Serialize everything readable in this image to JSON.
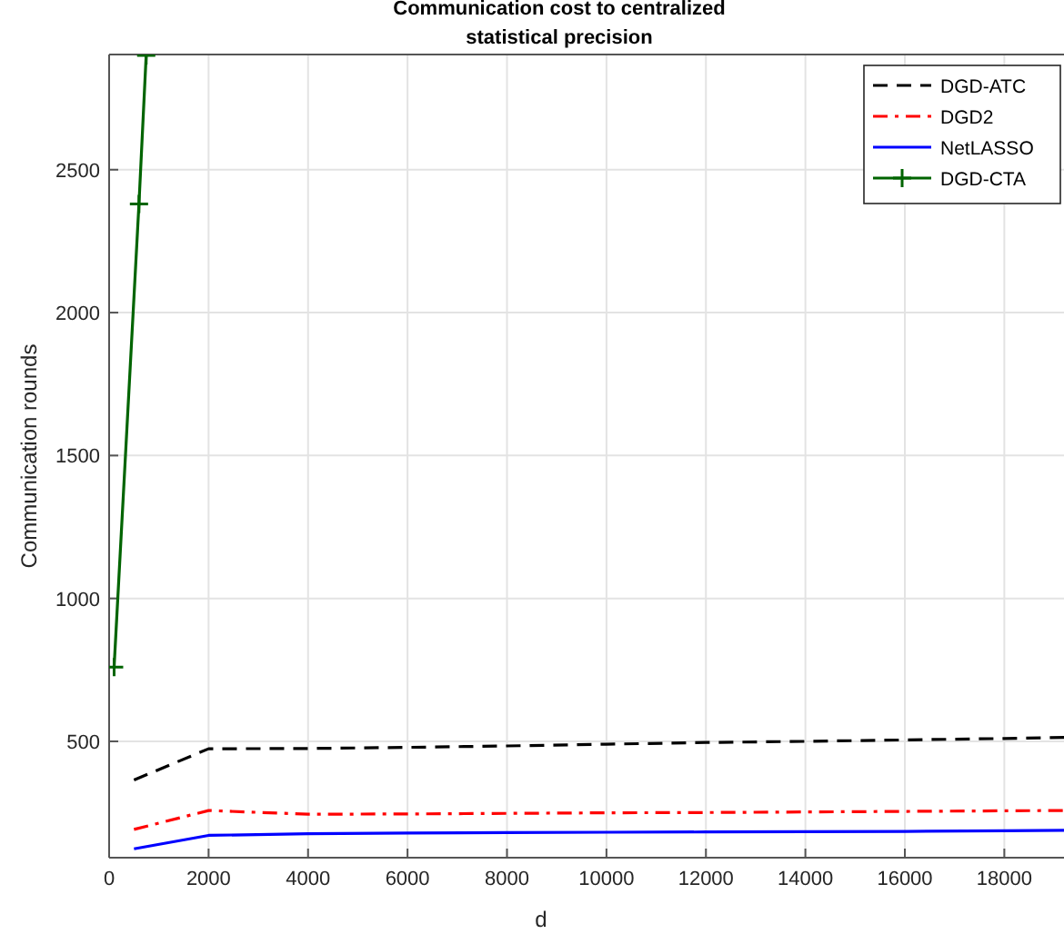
{
  "chart_data": {
    "type": "line",
    "title": "Communication cost to centralized statistical precision",
    "xlabel": "d",
    "ylabel": "Communication rounds",
    "xlim": [
      0,
      19200
    ],
    "ylim": [
      93,
      2903
    ],
    "xticks": [
      0,
      2000,
      4000,
      6000,
      8000,
      10000,
      12000,
      14000,
      16000,
      18000
    ],
    "yticks": [
      500,
      1000,
      1500,
      2000,
      2500
    ],
    "grid": true,
    "legend": "top right",
    "series": [
      {
        "name": "DGD-ATC",
        "color": "#000000",
        "line_style": "dashed",
        "marker": "none",
        "x": [
          500,
          2000,
          4000,
          6000,
          8000,
          10000,
          12000,
          14000,
          16000,
          18000,
          19200
        ],
        "values": [
          365,
          474,
          475,
          479,
          484,
          490,
          496,
          500,
          505,
          510,
          514
        ]
      },
      {
        "name": "DGD2",
        "color": "#ff0000",
        "line_style": "dashdot",
        "marker": "none",
        "x": [
          500,
          2000,
          4000,
          6000,
          8000,
          10000,
          12000,
          14000,
          16000,
          18000,
          19200
        ],
        "values": [
          192,
          258,
          245,
          246,
          248,
          250,
          251,
          253,
          255,
          257,
          258
        ]
      },
      {
        "name": "NetLASSO",
        "color": "#0000ff",
        "line_style": "solid",
        "marker": "none",
        "x": [
          500,
          2000,
          4000,
          6000,
          8000,
          10000,
          12000,
          14000,
          16000,
          18000,
          19200
        ],
        "values": [
          124,
          171,
          177,
          179,
          181,
          182,
          183,
          184,
          185,
          187,
          189
        ]
      },
      {
        "name": "DGD-CTA",
        "color": "#006400",
        "line_style": "solid",
        "marker": "cross",
        "x": [
          100,
          600,
          745
        ],
        "values": [
          760,
          2380,
          2900
        ]
      }
    ]
  }
}
